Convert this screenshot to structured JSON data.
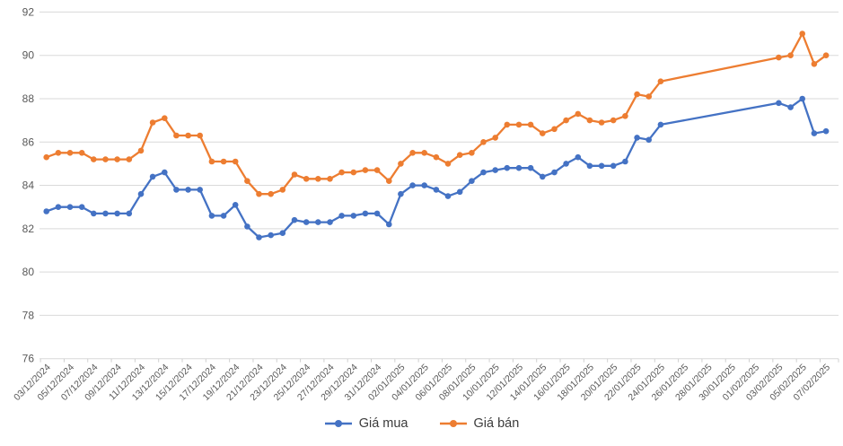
{
  "chart_data": {
    "type": "line",
    "title": "",
    "xlabel": "",
    "ylabel": "",
    "ylim": [
      76,
      92
    ],
    "y_ticks": [
      76,
      78,
      80,
      82,
      84,
      86,
      88,
      90,
      92
    ],
    "grid": true,
    "legend_position": "bottom",
    "x_label_every": 2,
    "x": [
      "03/12/2024",
      "04/12/2024",
      "05/12/2024",
      "06/12/2024",
      "07/12/2024",
      "08/12/2024",
      "09/12/2024",
      "10/12/2024",
      "11/12/2024",
      "12/12/2024",
      "13/12/2024",
      "14/12/2024",
      "15/12/2024",
      "16/12/2024",
      "17/12/2024",
      "18/12/2024",
      "19/12/2024",
      "20/12/2024",
      "21/12/2024",
      "22/12/2024",
      "23/12/2024",
      "24/12/2024",
      "25/12/2024",
      "26/12/2024",
      "27/12/2024",
      "28/12/2024",
      "29/12/2024",
      "30/12/2024",
      "31/12/2024",
      "01/01/2025",
      "02/01/2025",
      "03/01/2025",
      "04/01/2025",
      "05/01/2025",
      "06/01/2025",
      "07/01/2025",
      "08/01/2025",
      "09/01/2025",
      "10/01/2025",
      "11/01/2025",
      "12/01/2025",
      "13/01/2025",
      "14/01/2025",
      "15/01/2025",
      "16/01/2025",
      "17/01/2025",
      "18/01/2025",
      "19/01/2025",
      "20/01/2025",
      "21/01/2025",
      "22/01/2025",
      "23/01/2025",
      "24/01/2025",
      "25/01/2025",
      "26/01/2025",
      "27/01/2025",
      "28/01/2025",
      "29/01/2025",
      "30/01/2025",
      "31/01/2025",
      "01/02/2025",
      "02/02/2025",
      "03/02/2025",
      "04/02/2025",
      "05/02/2025",
      "06/02/2025",
      "07/02/2025"
    ],
    "series": [
      {
        "name": "Giá mua",
        "color": "#4472C4",
        "values": [
          82.8,
          83.0,
          83.0,
          83.0,
          82.7,
          82.7,
          82.7,
          82.7,
          83.6,
          84.4,
          84.6,
          83.8,
          83.8,
          83.8,
          82.6,
          82.6,
          83.1,
          82.1,
          81.6,
          81.7,
          81.8,
          82.4,
          82.3,
          82.3,
          82.3,
          82.6,
          82.6,
          82.7,
          82.7,
          82.2,
          83.6,
          84.0,
          84.0,
          83.8,
          83.5,
          83.7,
          84.2,
          84.6,
          84.7,
          84.8,
          84.8,
          84.8,
          84.4,
          84.6,
          85.0,
          85.3,
          84.9,
          84.9,
          84.9,
          85.1,
          86.2,
          86.1,
          86.8,
          null,
          null,
          null,
          null,
          null,
          null,
          null,
          null,
          null,
          87.8,
          87.6,
          88.0,
          86.4,
          86.5
        ]
      },
      {
        "name": "Giá bán",
        "color": "#ED7D31",
        "values": [
          85.3,
          85.5,
          85.5,
          85.5,
          85.2,
          85.2,
          85.2,
          85.2,
          85.6,
          86.9,
          87.1,
          86.3,
          86.3,
          86.3,
          85.1,
          85.1,
          85.1,
          84.2,
          83.6,
          83.6,
          83.8,
          84.5,
          84.3,
          84.3,
          84.3,
          84.6,
          84.6,
          84.7,
          84.7,
          84.2,
          85.0,
          85.5,
          85.5,
          85.3,
          85.0,
          85.4,
          85.5,
          86.0,
          86.2,
          86.8,
          86.8,
          86.8,
          86.4,
          86.6,
          87.0,
          87.3,
          87.0,
          86.9,
          87.0,
          87.2,
          88.2,
          88.1,
          88.8,
          null,
          null,
          null,
          null,
          null,
          null,
          null,
          null,
          null,
          89.9,
          90.0,
          91.0,
          89.6,
          90.0
        ]
      }
    ]
  },
  "style": {
    "gridline_color": "#d9d9d9",
    "axis_label_color": "#595959",
    "legend_text_color": "#3b3b3b",
    "background": "#ffffff"
  }
}
